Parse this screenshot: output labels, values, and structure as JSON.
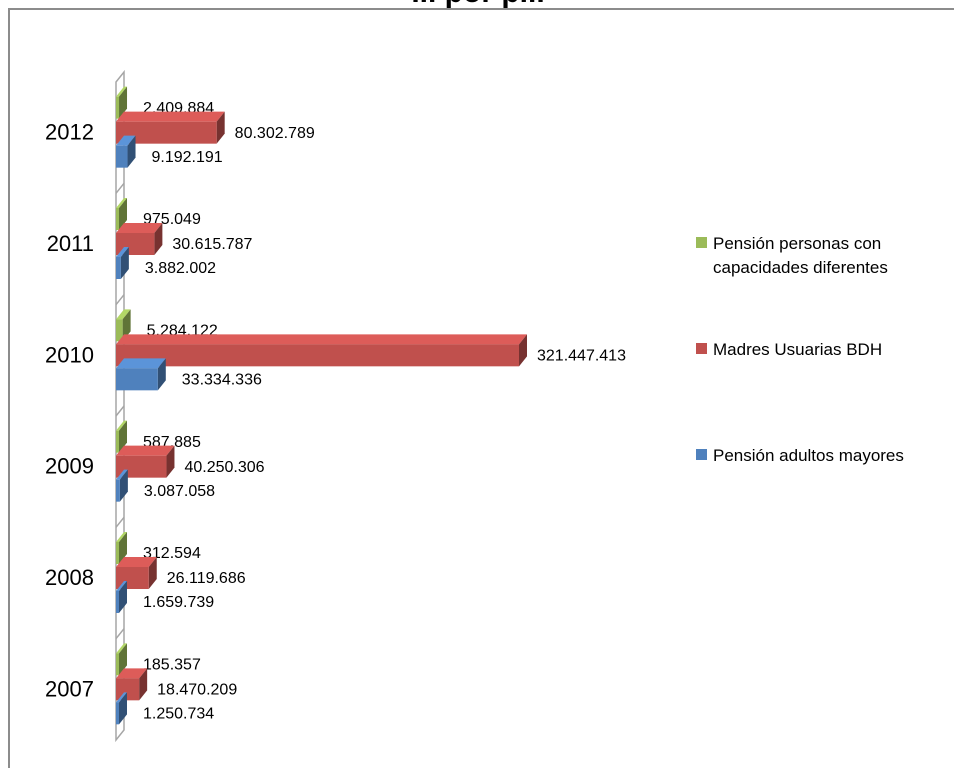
{
  "chart_data": {
    "type": "bar",
    "orientation": "horizontal",
    "title": "... por p...",
    "categories": [
      "2007",
      "2008",
      "2009",
      "2010",
      "2011",
      "2012"
    ],
    "series": [
      {
        "name": "Pensión personas con capacidades diferentes",
        "color": "#9bbb59",
        "values": [
          185357,
          312594,
          587885,
          5284122,
          975049,
          2409884
        ],
        "labels": [
          "185.357",
          "312.594",
          "587.885",
          "5.284.122",
          "975.049",
          "2.409.884"
        ]
      },
      {
        "name": "Madres Usuarias BDH",
        "color": "#c0504d",
        "values": [
          18470209,
          26119686,
          40250306,
          321447413,
          30615787,
          80302789
        ],
        "labels": [
          "18.470.209",
          "26.119.686",
          "40.250.306",
          "321.447.413",
          "30.615.787",
          "80.302.789"
        ]
      },
      {
        "name": "Pensión adultos mayores",
        "color": "#4f81bd",
        "values": [
          1250734,
          1659739,
          3087058,
          33334336,
          3882002,
          9192191
        ],
        "labels": [
          "1.250.734",
          "1.659.739",
          "3.087.058",
          "33.334.336",
          "3.882.002",
          "9.192.191"
        ]
      }
    ],
    "legend": {
      "position": "right",
      "entries": [
        {
          "lines": [
            "Pensión personas con",
            "capacidades diferentes"
          ],
          "color": "#9bbb59"
        },
        {
          "lines": [
            "Madres Usuarias BDH"
          ],
          "color": "#c0504d"
        },
        {
          "lines": [
            "Pensión adultos mayores"
          ],
          "color": "#4f81bd"
        }
      ]
    },
    "grid": false,
    "style": "3d"
  }
}
